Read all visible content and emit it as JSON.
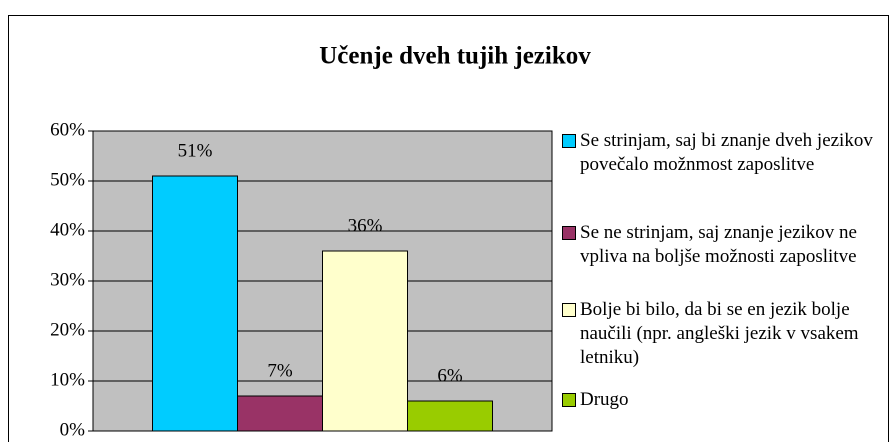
{
  "chart_data": {
    "type": "bar",
    "title": "Učenje dveh tujih jezikov",
    "categories": [
      null
    ],
    "series": [
      {
        "name": "Se strinjam, saj bi znanje dveh jezikov povečalo možnmost zaposlitve",
        "color": "#00ccff",
        "values": [
          51
        ],
        "value_labels": [
          "51%"
        ]
      },
      {
        "name": "Se ne strinjam, saj znanje jezikov ne vpliva na boljše možnosti zaposlitve",
        "color": "#993366",
        "values": [
          7
        ],
        "value_labels": [
          "7%"
        ]
      },
      {
        "name": "Bolje bi bilo, da bi se en jezik bolje naučili (npr. angleški jezik v vsakem letniku)",
        "color": "#ffffcc",
        "values": [
          36
        ],
        "value_labels": [
          "36%"
        ]
      },
      {
        "name": "Drugo",
        "color": "#99cc00",
        "values": [
          6
        ],
        "value_labels": [
          "6%"
        ]
      }
    ],
    "ylim": [
      0,
      60
    ],
    "yticks": [
      {
        "value": 0,
        "label": "0%"
      },
      {
        "value": 10,
        "label": "10%"
      },
      {
        "value": 20,
        "label": "20%"
      },
      {
        "value": 30,
        "label": "30%"
      },
      {
        "value": 40,
        "label": "40%"
      },
      {
        "value": 50,
        "label": "50%"
      },
      {
        "value": 60,
        "label": "60%"
      }
    ],
    "grid": true,
    "legend": "right",
    "plot_background": "#c0c0c0"
  }
}
